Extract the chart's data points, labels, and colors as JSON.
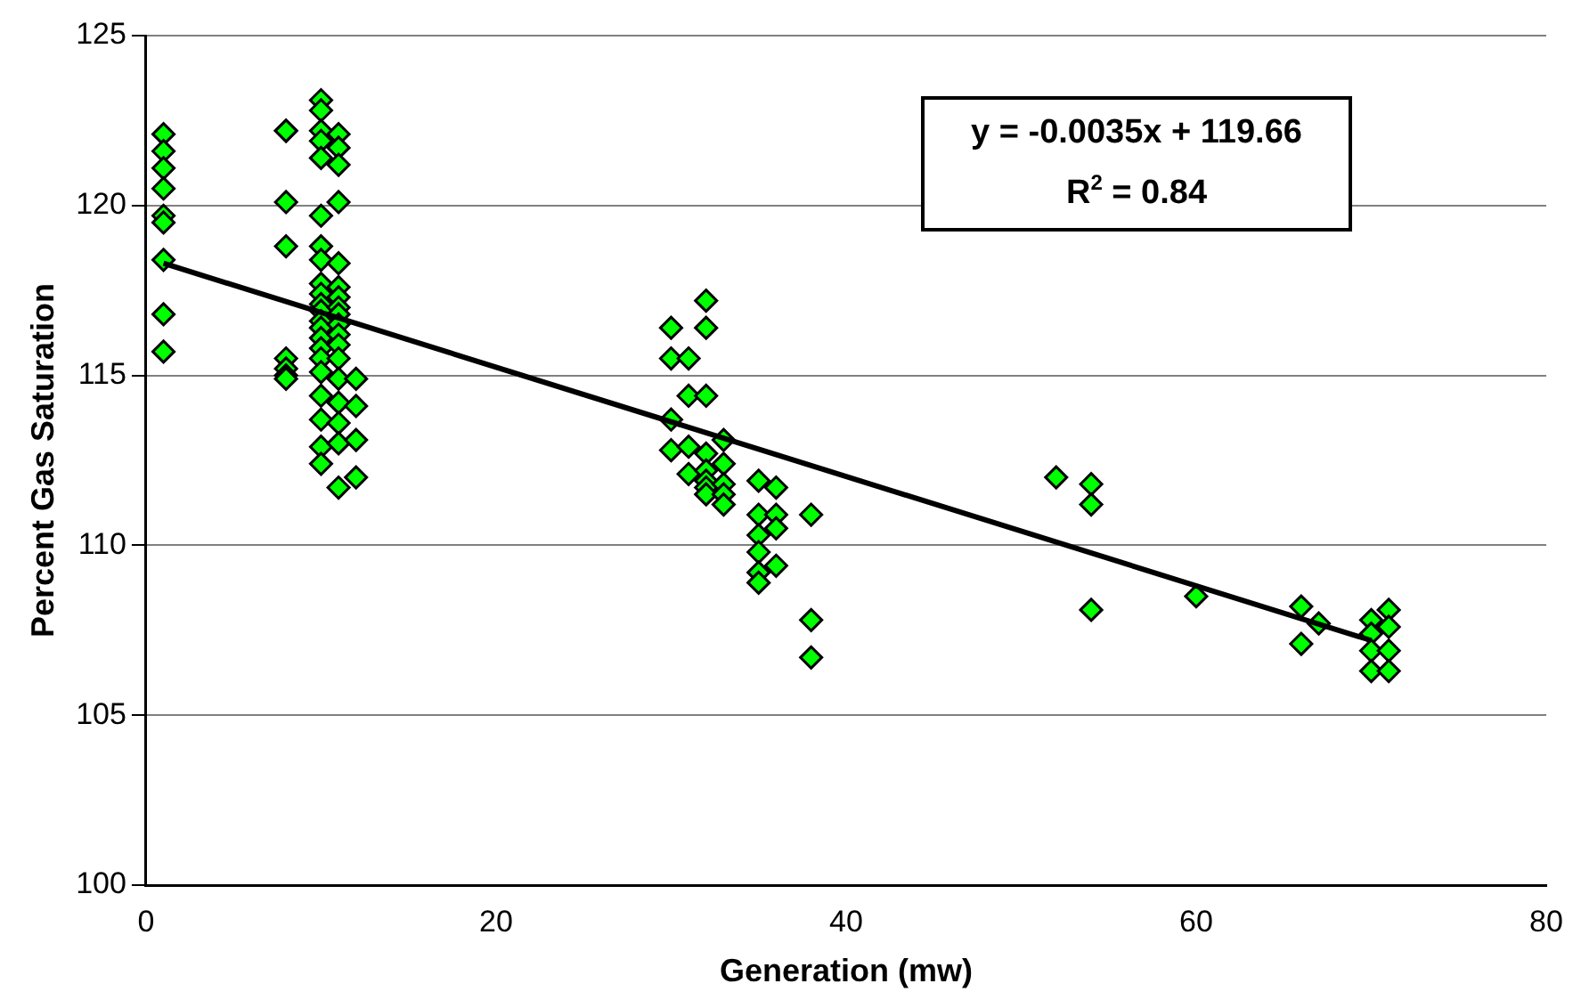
{
  "chart_data": {
    "type": "scatter",
    "xlabel": "Generation (mw)",
    "ylabel": "Percent Gas Saturation",
    "xlim": [
      0,
      80
    ],
    "xticks": [
      0,
      20,
      40,
      60,
      80
    ],
    "ylim": [
      100,
      125
    ],
    "yticks": [
      100,
      105,
      110,
      115,
      120,
      125
    ],
    "grid": "y",
    "legend": false,
    "marker": "diamond",
    "annotations": [
      "y = -0.0035x + 119.66",
      "R$^{2}$ = 0.84"
    ],
    "series": [
      {
        "type": "scatter",
        "color": "#00ff00",
        "x": [
          1,
          1,
          1,
          1,
          1,
          1,
          1,
          1,
          1,
          8,
          8,
          8,
          8,
          8,
          8,
          8,
          8,
          10,
          10,
          10,
          10,
          10,
          10,
          10,
          10,
          10,
          10,
          10,
          10,
          10,
          10,
          10,
          10,
          10,
          10,
          10,
          10,
          10,
          10,
          11,
          11,
          11,
          11,
          11,
          11,
          11,
          11,
          11,
          11,
          11,
          11,
          11,
          11,
          11,
          11,
          11,
          11,
          12,
          12,
          12,
          12,
          30,
          30,
          30,
          30,
          31,
          31,
          31,
          31,
          32,
          32,
          32,
          32,
          32,
          32,
          32,
          32,
          33,
          33,
          33,
          33,
          33,
          35,
          35,
          35,
          35,
          35,
          35,
          36,
          36,
          36,
          36,
          38,
          38,
          38,
          52,
          54,
          54,
          54,
          60,
          66,
          66,
          67,
          70,
          70,
          70,
          70,
          71,
          71,
          71,
          71
        ],
        "values": [
          122.1,
          121.6,
          121.1,
          120.5,
          119.7,
          119.5,
          118.4,
          116.8,
          115.7,
          122.2,
          122.2,
          120.1,
          118.8,
          115.5,
          115.2,
          115.0,
          114.9,
          123.1,
          122.8,
          122.2,
          121.9,
          121.4,
          119.7,
          118.8,
          118.4,
          117.7,
          117.4,
          117.1,
          116.9,
          116.6,
          116.4,
          116.1,
          115.8,
          115.5,
          115.1,
          114.4,
          113.7,
          112.9,
          112.4,
          122.1,
          121.7,
          121.2,
          120.1,
          118.3,
          117.6,
          117.3,
          117.0,
          116.8,
          116.5,
          116.2,
          115.9,
          115.5,
          114.9,
          114.2,
          113.6,
          113.0,
          111.7,
          114.9,
          114.1,
          113.1,
          112.0,
          116.4,
          115.5,
          113.7,
          112.8,
          115.5,
          114.4,
          112.9,
          112.1,
          117.2,
          116.4,
          114.4,
          112.7,
          112.2,
          111.9,
          111.7,
          111.5,
          113.1,
          112.4,
          111.8,
          111.5,
          111.2,
          111.9,
          110.9,
          110.3,
          109.8,
          109.2,
          108.9,
          111.7,
          110.9,
          110.5,
          109.4,
          110.9,
          107.8,
          106.7,
          112.0,
          111.8,
          111.2,
          108.1,
          108.5,
          108.2,
          107.1,
          107.7,
          107.8,
          107.4,
          106.9,
          106.3,
          108.1,
          107.6,
          106.9,
          106.3
        ]
      },
      {
        "type": "line",
        "color": "#000000",
        "marker": "none",
        "x": [
          1,
          70
        ],
        "values": [
          118.3,
          107.2
        ]
      }
    ]
  }
}
